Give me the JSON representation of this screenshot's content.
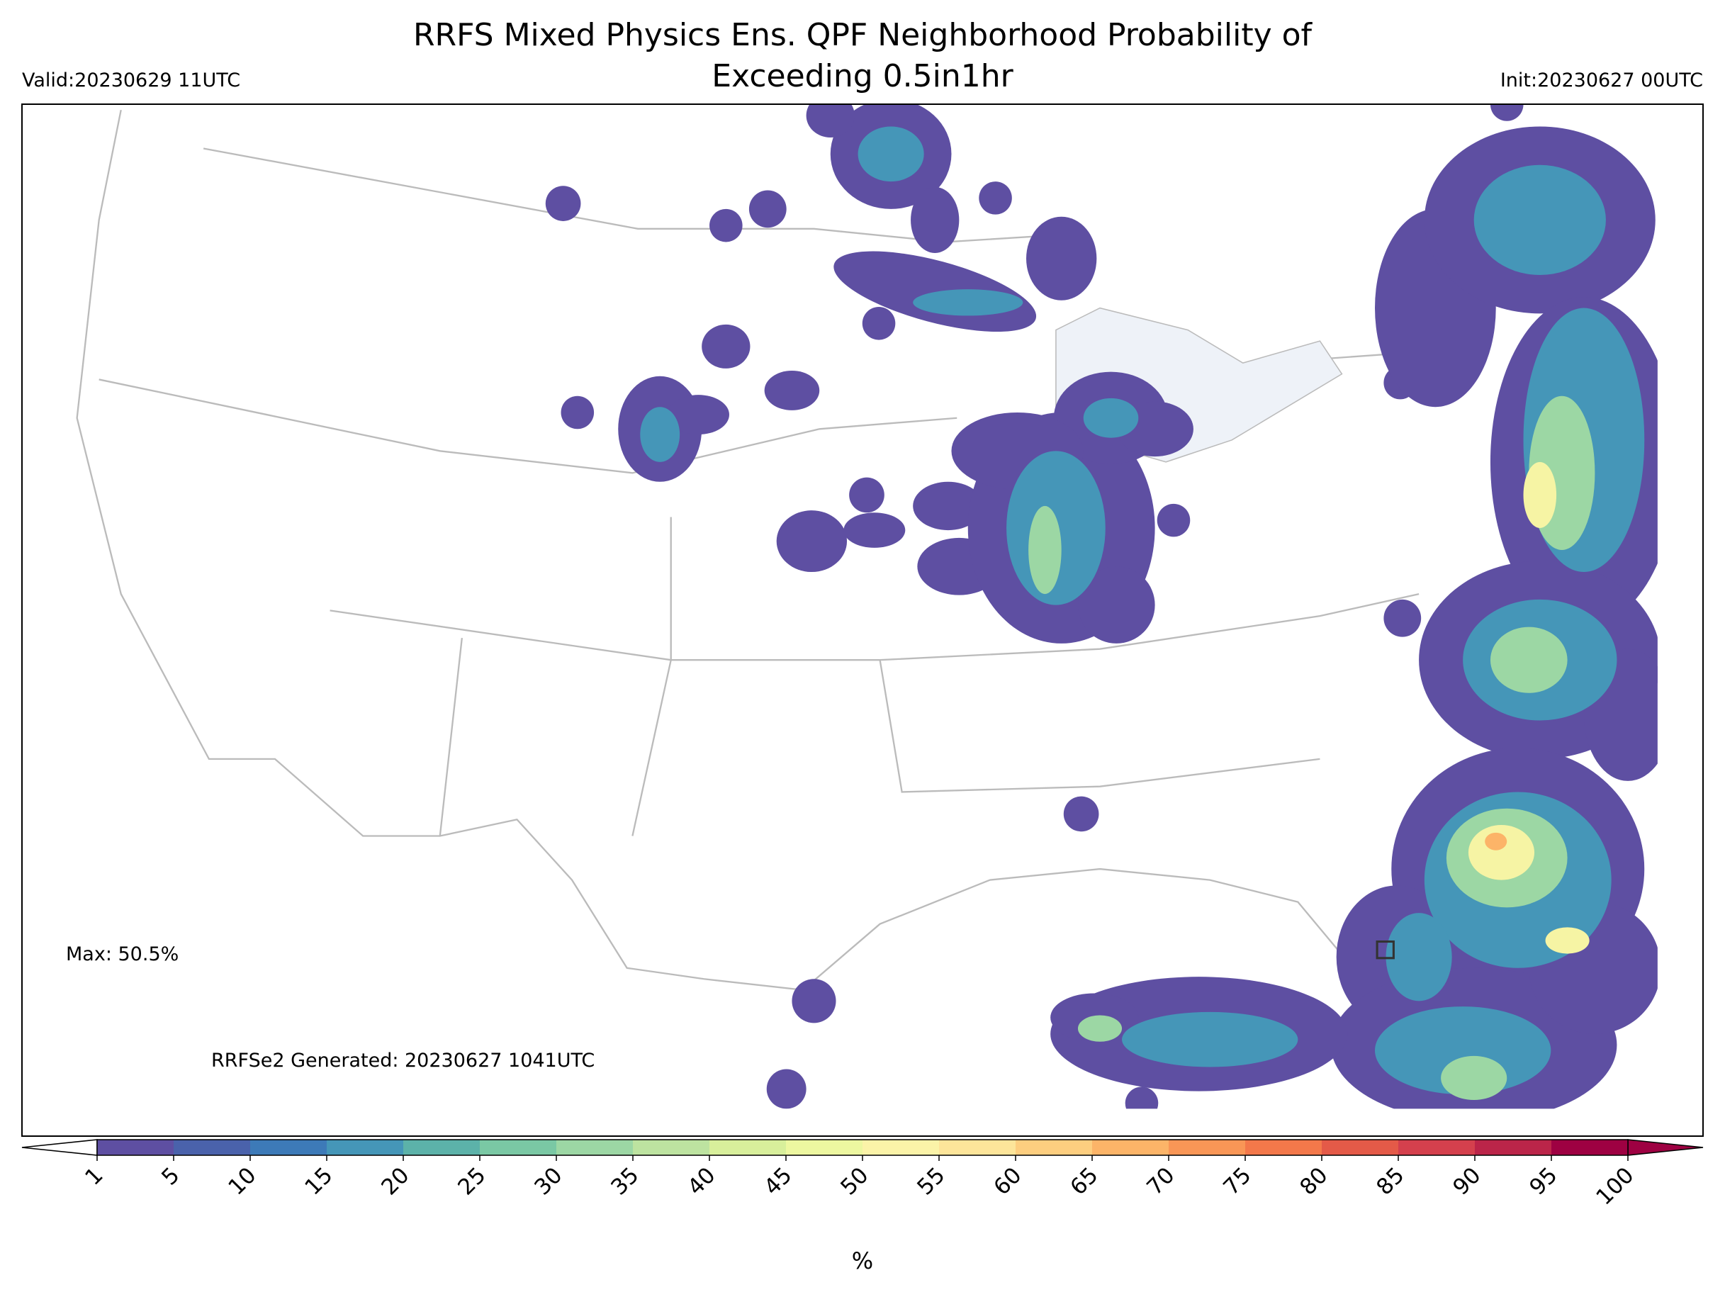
{
  "header": {
    "title_line1": "RRFS Mixed Physics Ens. QPF Neighborhood Probability of",
    "title_line2": "Exceeding 0.5in1hr",
    "valid": "Valid:20230629 11UTC",
    "init": "Init:20230627 00UTC"
  },
  "annotations": {
    "max": "Max: 50.5%",
    "generated": "RRFSe2 Generated: 20230627 1041UTC"
  },
  "colorbar": {
    "label": "%",
    "ticks": [
      1,
      5,
      10,
      15,
      20,
      25,
      30,
      35,
      40,
      45,
      50,
      55,
      60,
      65,
      70,
      75,
      80,
      85,
      90,
      95,
      100
    ],
    "colors": [
      "#5e4fa2",
      "#4a62ab",
      "#3d7ab8",
      "#4596b8",
      "#5cb2a9",
      "#7ac8a4",
      "#9cd7a4",
      "#bde3a0",
      "#d8ef9b",
      "#edf7a0",
      "#fbf3a8",
      "#fde59a",
      "#fdce7f",
      "#fcb468",
      "#f99656",
      "#f3784a",
      "#e45a48",
      "#d4404d",
      "#bb2549",
      "#9e0142"
    ],
    "under_color": "#ffffff",
    "over_color": "#9e0142"
  }
}
